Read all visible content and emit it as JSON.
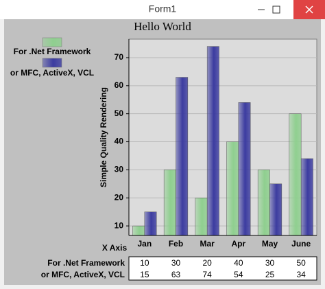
{
  "window": {
    "title": "Form1"
  },
  "chart_data": {
    "type": "bar",
    "title": "Hello World",
    "x_label": "X Axis",
    "y_label": "Simple Quality Rendering",
    "categories": [
      "Jan",
      "Feb",
      "Mar",
      "Apr",
      "May",
      "June"
    ],
    "series": [
      {
        "name": "For .Net Framework",
        "color": "#8fcf8f",
        "values": [
          10,
          30,
          20,
          40,
          30,
          50
        ]
      },
      {
        "name": "or MFC, ActiveX, VCL",
        "color": "#3c3ca0",
        "values": [
          15,
          63,
          74,
          54,
          25,
          34
        ]
      }
    ],
    "ylim": [
      6.6,
      76.6
    ],
    "yticks": [
      10,
      20,
      30,
      40,
      50,
      60,
      70
    ],
    "grid": true,
    "legend": "top-left"
  }
}
